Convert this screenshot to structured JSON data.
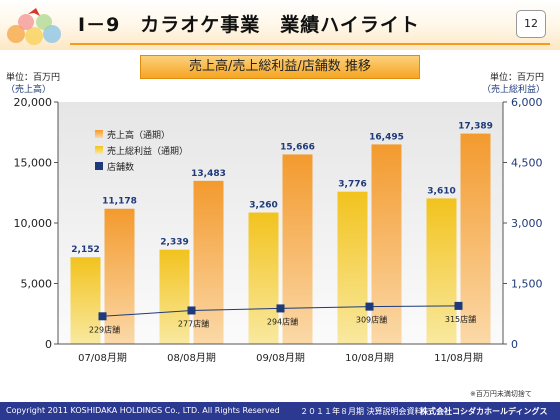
{
  "header": {
    "title": "Ⅰ－9　カラオケ事業　業績ハイライト",
    "page_number": "12"
  },
  "subtitle": "売上高/売上総利益/店舗数 推移",
  "units": {
    "left_line1": "単位：百万円",
    "left_line2": "（売上高）",
    "right_line1": "単位：百万円",
    "right_line2": "（売上総利益）"
  },
  "note": "※百万円未満切捨て",
  "footer": {
    "copyright": "Copyright 2011 KOSHIDAKA HOLDINGS Co., LTD. All Rights Reserved",
    "doc": "２０１１年８月期 決算説明会資料",
    "company": "株式会社コシダカホールディングス"
  },
  "colors": {
    "sales": "#f39a2e",
    "profit": "#f2c31e",
    "stores": "#1f3a7a",
    "header_accent": "#f39c1e",
    "footer_bg": "#2b3990"
  },
  "chart_data": {
    "type": "bar",
    "categories": [
      "07/08月期",
      "08/08月期",
      "09/08月期",
      "10/08月期",
      "11/08月期"
    ],
    "series": [
      {
        "name": "売上高（通期）",
        "axis": "left",
        "values": [
          11178,
          13483,
          15666,
          16495,
          17389
        ],
        "labels": [
          "11,178",
          "13,483",
          "15,666",
          "16,495",
          "17,389"
        ]
      },
      {
        "name": "売上総利益（通期）",
        "axis": "right",
        "values": [
          2152,
          2339,
          3260,
          3776,
          3610
        ],
        "labels": [
          "2,152",
          "2,339",
          "3,260",
          "3,776",
          "3,610"
        ]
      },
      {
        "name": "店舗数",
        "kind": "line",
        "values": [
          229,
          277,
          294,
          309,
          315
        ],
        "labels": [
          "229店舗",
          "277店舗",
          "294店舗",
          "309店舗",
          "315店舗"
        ]
      }
    ],
    "left_axis": {
      "ylim": [
        0,
        20000
      ],
      "ticks": [
        "0",
        "5,000",
        "10,000",
        "15,000",
        "20,000"
      ]
    },
    "right_axis": {
      "ylim": [
        0,
        6000
      ],
      "ticks": [
        "0",
        "1,500",
        "3,000",
        "4,500",
        "6,000"
      ]
    },
    "grid": false,
    "legend_position": "top-left"
  }
}
